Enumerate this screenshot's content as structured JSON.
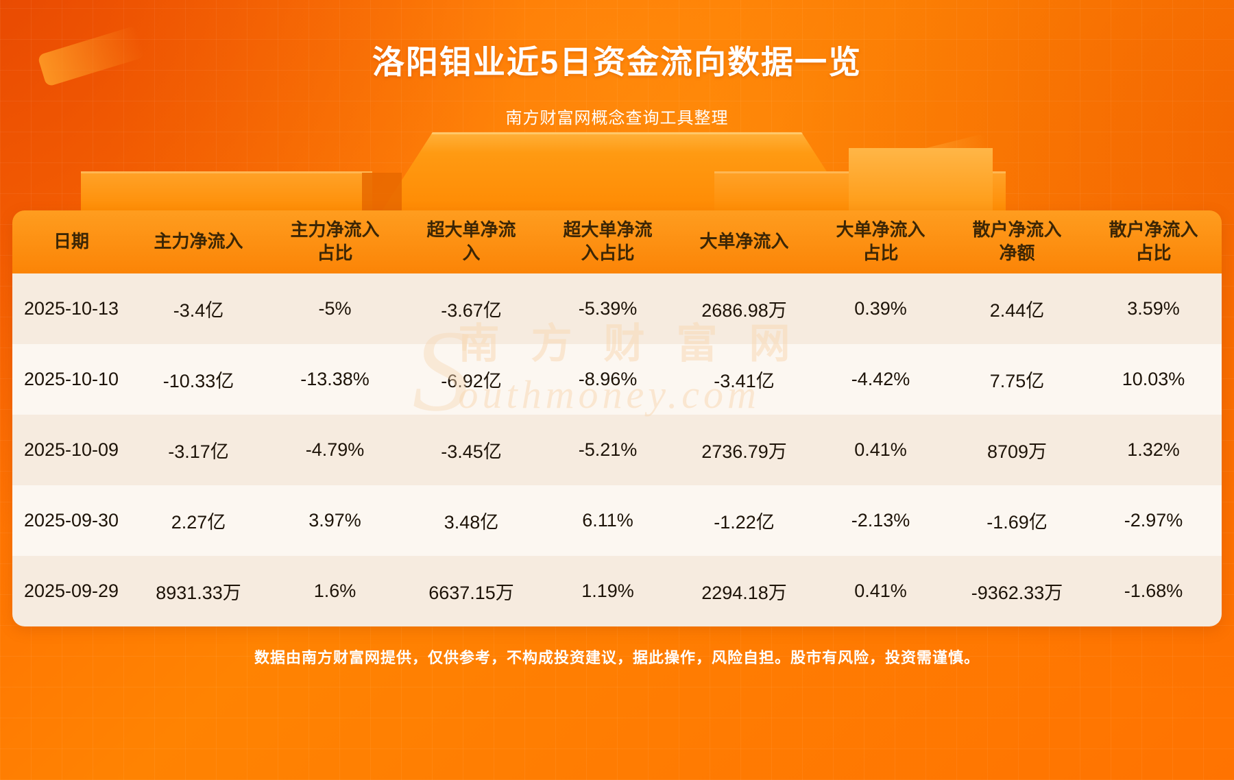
{
  "header": {
    "title": "洛阳钼业近5日资金流向数据一览",
    "subtitle": "南方财富网概念查询工具整理"
  },
  "chart_data": {
    "type": "table",
    "title": "洛阳钼业近5日资金流向数据一览",
    "columns": [
      "日期",
      "主力净流入",
      "主力净流入占比",
      "超大单净流入",
      "超大单净流入占比",
      "大单净流入",
      "大单净流入占比",
      "散户净流入净额",
      "散户净流入占比"
    ],
    "rows": [
      [
        "2025-10-13",
        "-3.4亿",
        "-5%",
        "-3.67亿",
        "-5.39%",
        "2686.98万",
        "0.39%",
        "2.44亿",
        "3.59%"
      ],
      [
        "2025-10-10",
        "-10.33亿",
        "-13.38%",
        "-6.92亿",
        "-8.96%",
        "-3.41亿",
        "-4.42%",
        "7.75亿",
        "10.03%"
      ],
      [
        "2025-10-09",
        "-3.17亿",
        "-4.79%",
        "-3.45亿",
        "-5.21%",
        "2736.79万",
        "0.41%",
        "8709万",
        "1.32%"
      ],
      [
        "2025-09-30",
        "2.27亿",
        "3.97%",
        "3.48亿",
        "6.11%",
        "-1.22亿",
        "-2.13%",
        "-1.69亿",
        "-2.97%"
      ],
      [
        "2025-09-29",
        "8931.33万",
        "1.6%",
        "6637.15万",
        "1.19%",
        "2294.18万",
        "0.41%",
        "-9362.33万",
        "-1.68%"
      ]
    ]
  },
  "watermark": {
    "cn": "南方财富网",
    "s_letter": "S",
    "en_rest": "outhmoney.com"
  },
  "footer": {
    "disclaimer": "数据由南方财富网提供，仅供参考，不构成投资建议，据此操作，风险自担。股市有风险，投资需谨慎。"
  },
  "colors": {
    "accent_orange": "#ff7a00",
    "header_row_orange": "#fb8406",
    "row_odd": "#f6ebdf",
    "row_even": "#fcf7f1",
    "text_dark": "#1d1308",
    "title_white": "#ffffff"
  }
}
